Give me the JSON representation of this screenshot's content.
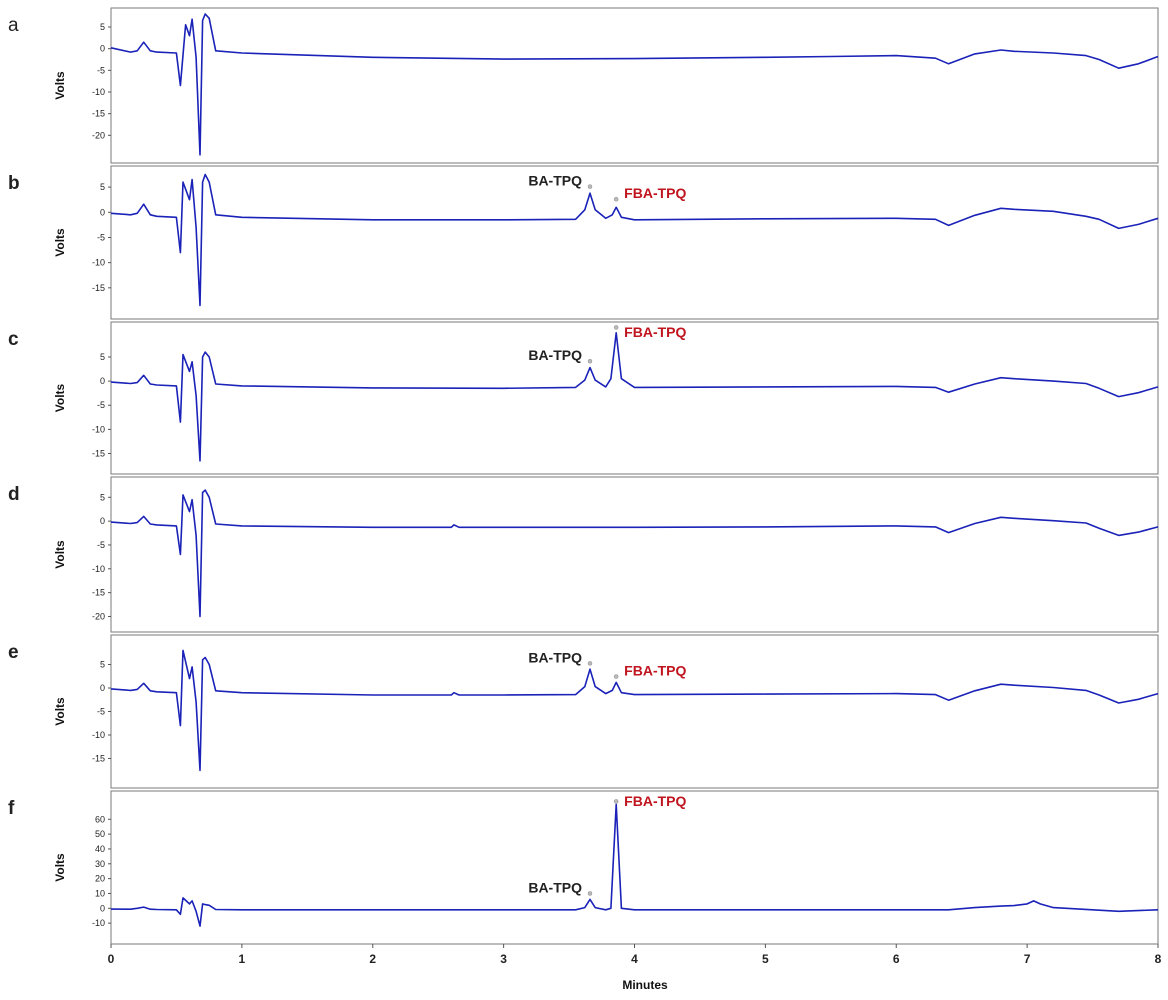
{
  "chart_data": {
    "type": "line",
    "xlabel": "Minutes",
    "ylabel": "Volts",
    "xlim": [
      0,
      8
    ],
    "xticks": [
      "0",
      "1",
      "2",
      "3",
      "4",
      "5",
      "6",
      "7",
      "8"
    ],
    "line_color": "#1a22b8",
    "annotation_colors": {
      "BA-TPQ": "#222222",
      "FBA-TPQ": "#c0141e"
    },
    "panels": [
      {
        "label": "a",
        "ylabel": "Volts",
        "ylim": [
          -25,
          8
        ],
        "yticks": [
          "5",
          "0",
          "-5",
          "-10",
          "-15",
          "-20"
        ],
        "series": [
          {
            "x": [
              0.0,
              0.15,
              0.2,
              0.25,
              0.3,
              0.35,
              0.5,
              0.53,
              0.57,
              0.6,
              0.62,
              0.65,
              0.68,
              0.7,
              0.72,
              0.75,
              0.8,
              1.0,
              2.0,
              3.0,
              4.0,
              5.0,
              5.5,
              6.0,
              6.3,
              6.4,
              6.6,
              6.8,
              6.9,
              7.2,
              7.45,
              7.55,
              7.7,
              7.85,
              8.0
            ],
            "y": [
              0.2,
              -0.8,
              -0.5,
              1.5,
              -0.5,
              -0.8,
              -1.0,
              -8.5,
              5.5,
              3.0,
              6.8,
              -2.0,
              -24.5,
              6.5,
              8.0,
              7.0,
              -0.5,
              -1.0,
              -2.0,
              -2.4,
              -2.3,
              -2.0,
              -1.8,
              -1.6,
              -2.2,
              -3.5,
              -1.2,
              -0.3,
              -0.6,
              -1.0,
              -1.6,
              -2.5,
              -4.5,
              -3.5,
              -1.8
            ]
          }
        ],
        "annotations": []
      },
      {
        "label": "b",
        "ylabel": "Volts",
        "ylim": [
          -20,
          8
        ],
        "yticks": [
          "5",
          "0",
          "-5",
          "-10",
          "-15"
        ],
        "series": [
          {
            "x": [
              0.0,
              0.15,
              0.2,
              0.25,
              0.3,
              0.35,
              0.5,
              0.53,
              0.55,
              0.6,
              0.62,
              0.65,
              0.68,
              0.7,
              0.72,
              0.75,
              0.8,
              1.0,
              2.0,
              3.0,
              3.55,
              3.62,
              3.66,
              3.7,
              3.78,
              3.83,
              3.86,
              3.9,
              4.0,
              5.0,
              6.0,
              6.3,
              6.4,
              6.6,
              6.8,
              6.9,
              7.2,
              7.45,
              7.55,
              7.7,
              7.85,
              8.0
            ],
            "y": [
              -0.2,
              -0.5,
              -0.2,
              1.6,
              -0.5,
              -0.8,
              -1.0,
              -8.0,
              6.0,
              2.5,
              6.5,
              -3.0,
              -18.5,
              6.0,
              7.5,
              6.0,
              -0.5,
              -1.0,
              -1.5,
              -1.5,
              -1.4,
              0.5,
              3.8,
              0.5,
              -1.2,
              -0.5,
              1.0,
              -1.0,
              -1.5,
              -1.3,
              -1.2,
              -1.4,
              -2.6,
              -0.6,
              0.8,
              0.6,
              0.2,
              -0.8,
              -1.4,
              -3.2,
              -2.4,
              -1.2
            ]
          }
        ],
        "annotations": [
          {
            "text": "BA-TPQ",
            "x": 3.66,
            "y": 4.5,
            "color": "#222222"
          },
          {
            "text": "FBA-TPQ",
            "x": 3.86,
            "y": 2.0,
            "color": "#c0141e"
          }
        ]
      },
      {
        "label": "c",
        "ylabel": "Volts",
        "ylim": [
          -18,
          11
        ],
        "yticks": [
          "5",
          "0",
          "-5",
          "-10",
          "-15"
        ],
        "series": [
          {
            "x": [
              0.0,
              0.15,
              0.2,
              0.25,
              0.3,
              0.35,
              0.5,
              0.53,
              0.55,
              0.6,
              0.62,
              0.65,
              0.68,
              0.7,
              0.72,
              0.75,
              0.8,
              1.0,
              2.0,
              3.0,
              3.55,
              3.62,
              3.66,
              3.7,
              3.78,
              3.82,
              3.86,
              3.9,
              4.0,
              5.0,
              6.0,
              6.3,
              6.4,
              6.6,
              6.8,
              6.9,
              7.2,
              7.45,
              7.55,
              7.7,
              7.85,
              8.0
            ],
            "y": [
              -0.2,
              -0.5,
              -0.3,
              1.2,
              -0.6,
              -0.8,
              -1.0,
              -8.5,
              5.5,
              2.0,
              4.0,
              -3.0,
              -16.5,
              5.0,
              6.0,
              5.0,
              -0.6,
              -1.0,
              -1.4,
              -1.5,
              -1.3,
              0.2,
              2.8,
              0.2,
              -1.2,
              0.5,
              10.0,
              0.5,
              -1.3,
              -1.2,
              -1.1,
              -1.3,
              -2.3,
              -0.6,
              0.7,
              0.5,
              0.0,
              -0.5,
              -1.5,
              -3.2,
              -2.4,
              -1.2
            ]
          }
        ],
        "annotations": [
          {
            "text": "BA-TPQ",
            "x": 3.66,
            "y": 3.5,
            "color": "#222222"
          },
          {
            "text": "FBA-TPQ",
            "x": 3.86,
            "y": 10.5,
            "color": "#c0141e"
          }
        ]
      },
      {
        "label": "d",
        "ylabel": "Volts",
        "ylim": [
          -22,
          8
        ],
        "yticks": [
          "5",
          "0",
          "-5",
          "-10",
          "-15",
          "-20"
        ],
        "series": [
          {
            "x": [
              0.0,
              0.15,
              0.2,
              0.25,
              0.3,
              0.35,
              0.5,
              0.53,
              0.55,
              0.6,
              0.62,
              0.65,
              0.68,
              0.7,
              0.72,
              0.75,
              0.8,
              1.0,
              2.0,
              2.6,
              2.62,
              2.66,
              3.0,
              4.0,
              5.0,
              6.0,
              6.3,
              6.4,
              6.6,
              6.8,
              6.9,
              7.2,
              7.45,
              7.55,
              7.7,
              7.85,
              8.0
            ],
            "y": [
              -0.2,
              -0.5,
              -0.3,
              1.0,
              -0.6,
              -0.8,
              -1.0,
              -7.0,
              5.5,
              2.0,
              4.5,
              -3.0,
              -20.0,
              6.0,
              6.5,
              5.0,
              -0.6,
              -1.0,
              -1.3,
              -1.3,
              -0.8,
              -1.3,
              -1.3,
              -1.3,
              -1.2,
              -1.0,
              -1.2,
              -2.4,
              -0.5,
              0.8,
              0.6,
              0.1,
              -0.4,
              -1.5,
              -3.0,
              -2.3,
              -1.2
            ]
          }
        ],
        "annotations": []
      },
      {
        "label": "e",
        "ylabel": "Volts",
        "ylim": [
          -20,
          10
        ],
        "yticks": [
          "5",
          "0",
          "-5",
          "-10",
          "-15"
        ],
        "series": [
          {
            "x": [
              0.0,
              0.15,
              0.2,
              0.25,
              0.3,
              0.35,
              0.5,
              0.53,
              0.55,
              0.6,
              0.62,
              0.65,
              0.68,
              0.7,
              0.72,
              0.75,
              0.8,
              1.0,
              2.0,
              2.6,
              2.62,
              2.66,
              3.0,
              3.55,
              3.62,
              3.66,
              3.7,
              3.78,
              3.83,
              3.86,
              3.9,
              4.0,
              5.0,
              6.0,
              6.3,
              6.4,
              6.6,
              6.8,
              6.9,
              7.2,
              7.45,
              7.55,
              7.7,
              7.85,
              8.0
            ],
            "y": [
              -0.2,
              -0.5,
              -0.3,
              1.0,
              -0.6,
              -0.8,
              -1.0,
              -8.0,
              8.0,
              2.0,
              4.5,
              -3.0,
              -17.5,
              6.0,
              6.5,
              5.0,
              -0.6,
              -1.0,
              -1.5,
              -1.5,
              -1.0,
              -1.5,
              -1.5,
              -1.4,
              0.3,
              4.0,
              0.3,
              -1.2,
              -0.5,
              1.2,
              -1.0,
              -1.4,
              -1.3,
              -1.2,
              -1.4,
              -2.6,
              -0.6,
              0.8,
              0.6,
              0.1,
              -0.5,
              -1.5,
              -3.2,
              -2.4,
              -1.2
            ]
          }
        ],
        "annotations": [
          {
            "text": "BA-TPQ",
            "x": 3.66,
            "y": 4.6,
            "color": "#222222"
          },
          {
            "text": "FBA-TPQ",
            "x": 3.86,
            "y": 1.8,
            "color": "#c0141e"
          }
        ]
      },
      {
        "label": "f",
        "ylabel": "Volts",
        "ylim": [
          -20,
          75
        ],
        "yticks": [
          "60",
          "50",
          "40",
          "30",
          "20",
          "10",
          "0",
          "-10"
        ],
        "series": [
          {
            "x": [
              0.0,
              0.15,
              0.2,
              0.25,
              0.3,
              0.35,
              0.5,
              0.53,
              0.55,
              0.6,
              0.62,
              0.65,
              0.68,
              0.7,
              0.72,
              0.75,
              0.8,
              1.0,
              2.0,
              3.0,
              3.55,
              3.62,
              3.66,
              3.7,
              3.78,
              3.82,
              3.86,
              3.9,
              4.0,
              5.0,
              6.0,
              6.3,
              6.4,
              6.6,
              6.8,
              6.9,
              7.0,
              7.05,
              7.1,
              7.2,
              7.5,
              7.7,
              8.0
            ],
            "y": [
              -0.5,
              -0.6,
              0.0,
              0.8,
              -0.6,
              -0.8,
              -1.0,
              -4.0,
              7.0,
              3.0,
              5.0,
              -2.0,
              -12.0,
              3.0,
              2.5,
              2.0,
              -0.8,
              -1.0,
              -1.0,
              -1.0,
              -1.0,
              0.5,
              6.0,
              0.5,
              -1.0,
              0.0,
              70.0,
              0.0,
              -1.0,
              -1.0,
              -1.0,
              -1.0,
              -1.0,
              0.5,
              1.5,
              1.8,
              3.0,
              5.0,
              3.0,
              0.5,
              -1.0,
              -2.0,
              -1.0
            ]
          }
        ],
        "annotations": [
          {
            "text": "BA-TPQ",
            "x": 3.66,
            "y": 8.0,
            "color": "#222222"
          },
          {
            "text": "FBA-TPQ",
            "x": 3.86,
            "y": 70.0,
            "color": "#c0141e"
          }
        ]
      }
    ]
  }
}
